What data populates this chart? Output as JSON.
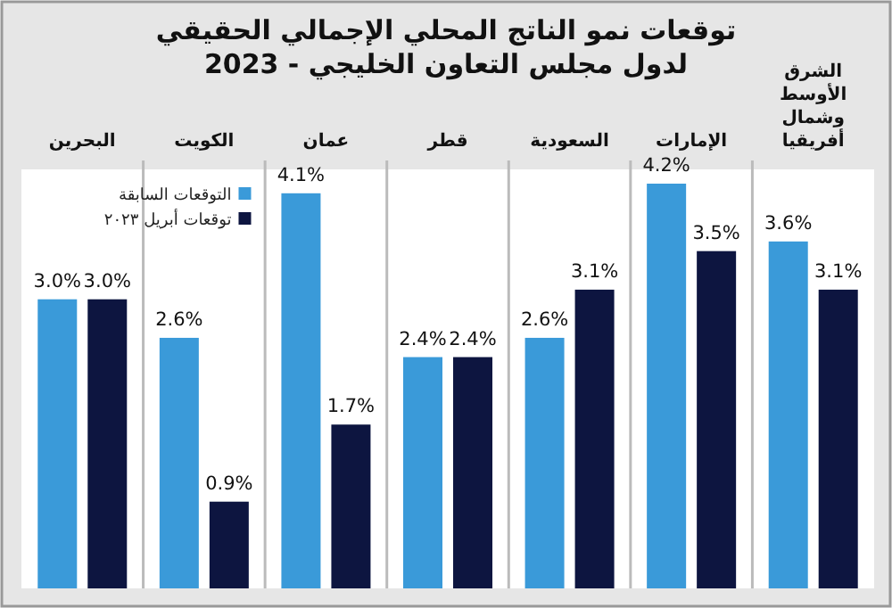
{
  "chart_data": {
    "type": "bar",
    "title": "توقعات نمو الناتج المحلي الإجمالي الحقيقي لدول مجلس التعاون الخليجي - 2023",
    "categories": [
      "البحرين",
      "الكويت",
      "عمان",
      "قطر",
      "السعودية",
      "الإمارات",
      "الشرق الأوسط وشمال أفريقيا"
    ],
    "series": [
      {
        "name": "التوقعات السابقة",
        "color": "#3a9ad9",
        "values": [
          3.0,
          2.6,
          4.1,
          2.4,
          2.6,
          4.2,
          3.6
        ],
        "value_labels": [
          "3.0%",
          "2.6%",
          "4.1%",
          "2.4%",
          "2.6%",
          "4.2%",
          "3.6%"
        ]
      },
      {
        "name": "توقعات أبريل ٢٠٢٣",
        "color": "#0d1540",
        "values": [
          3.0,
          0.9,
          1.7,
          2.4,
          3.1,
          3.5,
          3.1
        ],
        "value_labels": [
          "3.0%",
          "0.9%",
          "1.7%",
          "2.4%",
          "3.1%",
          "3.5%",
          "3.1%"
        ]
      }
    ],
    "legend": "top left"
  }
}
